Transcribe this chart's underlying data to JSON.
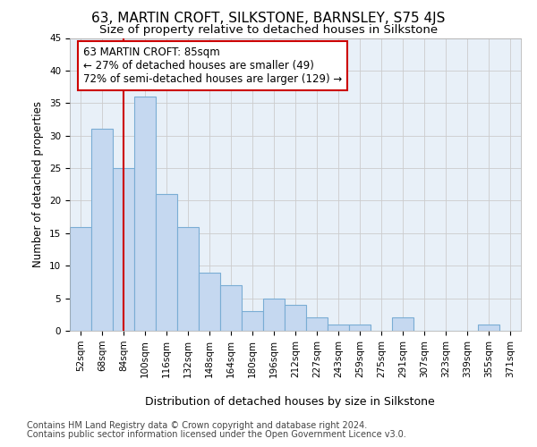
{
  "title": "63, MARTIN CROFT, SILKSTONE, BARNSLEY, S75 4JS",
  "subtitle": "Size of property relative to detached houses in Silkstone",
  "xlabel": "Distribution of detached houses by size in Silkstone",
  "ylabel": "Number of detached properties",
  "footer_line1": "Contains HM Land Registry data © Crown copyright and database right 2024.",
  "footer_line2": "Contains public sector information licensed under the Open Government Licence v3.0.",
  "categories": [
    "52sqm",
    "68sqm",
    "84sqm",
    "100sqm",
    "116sqm",
    "132sqm",
    "148sqm",
    "164sqm",
    "180sqm",
    "196sqm",
    "212sqm",
    "227sqm",
    "243sqm",
    "259sqm",
    "275sqm",
    "291sqm",
    "307sqm",
    "323sqm",
    "339sqm",
    "355sqm",
    "371sqm"
  ],
  "values": [
    16,
    31,
    25,
    36,
    21,
    16,
    9,
    7,
    3,
    5,
    4,
    2,
    1,
    1,
    0,
    2,
    0,
    0,
    0,
    1,
    0
  ],
  "bar_color": "#c5d8f0",
  "bar_edge_color": "#7aadd4",
  "grid_color": "#cccccc",
  "background_color": "#e8f0f8",
  "subject_line_color": "#cc0000",
  "annotation_line1": "63 MARTIN CROFT: 85sqm",
  "annotation_line2": "← 27% of detached houses are smaller (49)",
  "annotation_line3": "72% of semi-detached houses are larger (129) →",
  "annotation_box_color": "#cc0000",
  "ylim": [
    0,
    45
  ],
  "yticks": [
    0,
    5,
    10,
    15,
    20,
    25,
    30,
    35,
    40,
    45
  ],
  "title_fontsize": 11,
  "subtitle_fontsize": 9.5,
  "ylabel_fontsize": 8.5,
  "xlabel_fontsize": 9,
  "tick_fontsize": 7.5,
  "annotation_fontsize": 8.5,
  "footer_fontsize": 7
}
